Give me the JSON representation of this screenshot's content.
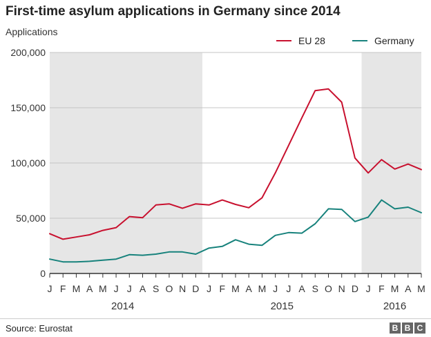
{
  "title": "First-time asylum applications in Germany since 2014",
  "source": "Source: Eurostat",
  "logo": "BBC",
  "chart_data": {
    "type": "line",
    "title": "First-time asylum applications in Germany since 2014",
    "ylabel": "Applications",
    "xlabel": "",
    "ylim": [
      0,
      200000
    ],
    "yticks": [
      0,
      50000,
      100000,
      150000,
      200000
    ],
    "ytick_labels": [
      "0",
      "50,000",
      "100,000",
      "150,000",
      "200,000"
    ],
    "grid": true,
    "legend_position": "top-right",
    "x": [
      "J",
      "F",
      "M",
      "A",
      "M",
      "J",
      "J",
      "A",
      "S",
      "O",
      "N",
      "D",
      "J",
      "F",
      "M",
      "A",
      "M",
      "J",
      "J",
      "A",
      "S",
      "O",
      "N",
      "D",
      "J",
      "F",
      "M",
      "A",
      "M"
    ],
    "years": [
      {
        "label": "2014",
        "start_index": 0,
        "end_index": 11,
        "shaded": true
      },
      {
        "label": "2015",
        "start_index": 12,
        "end_index": 23,
        "shaded": false
      },
      {
        "label": "2016",
        "start_index": 24,
        "end_index": 28,
        "shaded": true
      }
    ],
    "series": [
      {
        "name": "EU 28",
        "color": "#c8102e",
        "values": [
          36000,
          31000,
          33000,
          35000,
          39000,
          41500,
          51500,
          50500,
          62000,
          63000,
          59000,
          63000,
          62000,
          66500,
          62500,
          59500,
          68500,
          91000,
          116000,
          141000,
          165500,
          167000,
          155000,
          104500,
          91000,
          103000,
          94500,
          99000,
          94000
        ]
      },
      {
        "name": "Germany",
        "color": "#17827c",
        "values": [
          13000,
          10500,
          10500,
          11000,
          12000,
          13000,
          17000,
          16500,
          17500,
          19500,
          19500,
          17500,
          23000,
          24500,
          30500,
          26500,
          25500,
          34500,
          37000,
          36500,
          45000,
          58500,
          58000,
          47000,
          51000,
          66500,
          58500,
          60000,
          55000
        ]
      }
    ]
  }
}
